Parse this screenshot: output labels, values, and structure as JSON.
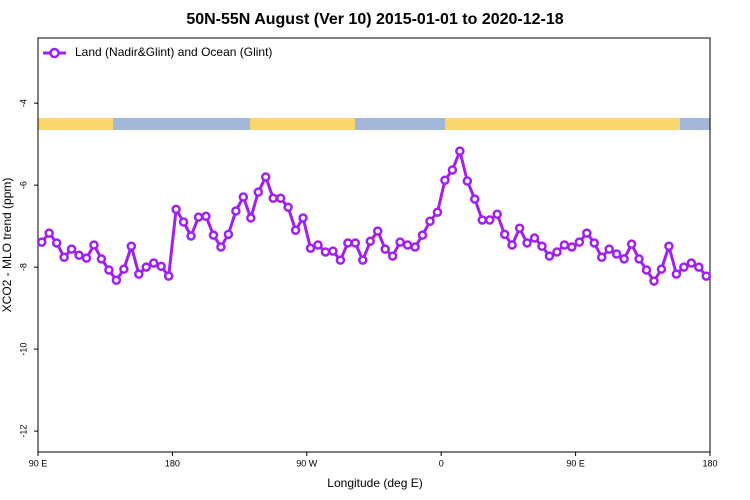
{
  "chart_data": {
    "type": "line",
    "title": "50N-55N August (Ver 10)   2015-01-01 to 2020-12-18",
    "x_label": "Longitude (deg E)",
    "y_label": "XCO2 - MLO trend (ppm)",
    "legend": "top-left",
    "xlim": [
      90,
      540
    ],
    "ylim": [
      -2.41,
      -12.51
    ],
    "xticks": [
      {
        "value": 90,
        "label": "90 E"
      },
      {
        "value": 180,
        "label": "180"
      },
      {
        "value": 270,
        "label": "90 W"
      },
      {
        "value": 360,
        "label": "0"
      },
      {
        "value": 450,
        "label": "90 E"
      },
      {
        "value": 540,
        "label": "180"
      }
    ],
    "yticks": [
      -4,
      -6,
      -8,
      -10,
      -12
    ],
    "x": [
      92.5,
      97.5,
      102.5,
      107.5,
      112.5,
      117.5,
      122.5,
      127.5,
      132.5,
      137.5,
      142.5,
      147.5,
      152.5,
      157.5,
      162.5,
      167.5,
      172.5,
      177.5,
      182.5,
      187.5,
      192.5,
      197.5,
      202.5,
      207.5,
      212.5,
      217.5,
      222.5,
      227.5,
      232.5,
      237.5,
      242.5,
      247.5,
      252.5,
      257.5,
      262.5,
      267.5,
      272.5,
      277.5,
      282.5,
      287.5,
      292.5,
      297.5,
      302.5,
      307.5,
      312.5,
      317.5,
      322.5,
      327.5,
      332.5,
      337.5,
      342.5,
      347.5,
      352.5,
      357.5,
      362.5,
      367.5,
      372.5,
      377.5,
      382.5,
      387.5,
      392.5,
      397.5,
      402.5,
      407.5,
      412.5,
      417.5,
      422.5,
      427.5,
      432.5,
      437.5,
      442.5,
      447.5,
      452.5,
      457.5,
      462.5,
      467.5,
      472.5,
      477.5,
      482.5,
      487.5,
      492.5,
      497.5,
      502.5,
      507.5,
      512.5,
      517.5,
      522.5,
      527.5,
      532.5,
      537.5
    ],
    "series": [
      {
        "name": "Land (Nadir&Glint) and Ocean (Glint)",
        "color": "#a020f0",
        "values": [
          -7.39,
          -7.17,
          -7.41,
          -7.76,
          -7.56,
          -7.71,
          -7.78,
          -7.46,
          -7.8,
          -8.07,
          -8.32,
          -8.05,
          -7.49,
          -8.17,
          -8.0,
          -7.9,
          -7.98,
          -8.22,
          -6.59,
          -6.9,
          -7.24,
          -6.78,
          -6.76,
          -7.22,
          -7.51,
          -7.2,
          -6.63,
          -6.29,
          -6.8,
          -6.17,
          -5.8,
          -6.32,
          -6.32,
          -6.54,
          -7.1,
          -6.8,
          -7.54,
          -7.46,
          -7.63,
          -7.61,
          -7.83,
          -7.41,
          -7.41,
          -7.83,
          -7.37,
          -7.12,
          -7.56,
          -7.73,
          -7.39,
          -7.46,
          -7.51,
          -7.22,
          -6.88,
          -6.66,
          -5.88,
          -5.63,
          -5.17,
          -5.9,
          -6.34,
          -6.85,
          -6.85,
          -6.71,
          -7.2,
          -7.46,
          -7.05,
          -7.41,
          -7.29,
          -7.49,
          -7.73,
          -7.63,
          -7.46,
          -7.51,
          -7.39,
          -7.17,
          -7.41,
          -7.76,
          -7.56,
          -7.68,
          -7.8,
          -7.44,
          -7.8,
          -8.07,
          -8.34,
          -8.05,
          -7.49,
          -8.17,
          -8.0,
          -7.9,
          -8.0,
          -8.22
        ]
      }
    ]
  }
}
